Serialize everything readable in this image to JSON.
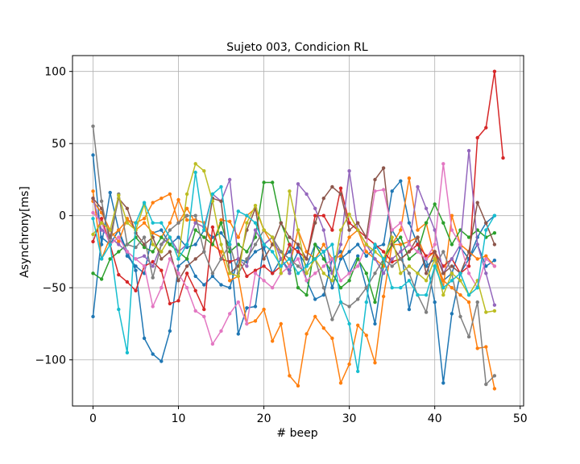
{
  "chart_data": {
    "type": "line",
    "title": "Sujeto 003, Condicion RL",
    "xlabel": "# beep",
    "ylabel": "Asynchrony[ms]",
    "xlim": [
      -2.4,
      50.4
    ],
    "ylim": [
      -132,
      111
    ],
    "xticks": [
      0,
      10,
      20,
      30,
      40,
      50
    ],
    "yticks": [
      -100,
      -50,
      0,
      50,
      100
    ],
    "grid": true,
    "legend": "none",
    "markers": "dot",
    "colors": [
      "#1f77b4",
      "#ff7f0e",
      "#2ca02c",
      "#d62728",
      "#9467bd",
      "#8c564b",
      "#e377c2",
      "#7f7f7f",
      "#bcbd22",
      "#17becf"
    ],
    "series": [
      {
        "color": "#1f77b4",
        "x": [
          0,
          1,
          2,
          3,
          4,
          5,
          6,
          7,
          8,
          9,
          10,
          11,
          12,
          13,
          14,
          15,
          16,
          17,
          18,
          19,
          20,
          21,
          22,
          23,
          24,
          25,
          26,
          27,
          28,
          29,
          30,
          31,
          32,
          33,
          34,
          35,
          36,
          37,
          38,
          39,
          40,
          41,
          42,
          43,
          44,
          45,
          46,
          47
        ],
        "y": [
          42,
          -20,
          16,
          -10,
          -25,
          -38,
          -85,
          -96,
          -101,
          -80,
          -35,
          -30,
          -42,
          -48,
          -42,
          -48,
          -50,
          -30,
          -32,
          -25,
          -22,
          -40,
          -30,
          -25,
          -22,
          -45,
          -58,
          -55,
          -30,
          -25,
          -40,
          -28,
          -50,
          -75,
          -35,
          -10,
          -20,
          -65,
          -40,
          -30,
          -60,
          -116,
          -68,
          -40,
          -30,
          -20,
          -35,
          -31
        ]
      },
      {
        "color": "#1f77b4",
        "x": [
          0,
          1,
          2,
          3,
          4,
          5,
          6,
          7,
          8,
          9,
          10,
          11,
          12,
          13,
          14,
          15,
          16,
          17,
          18,
          19,
          20,
          21,
          22,
          23,
          24,
          25,
          26,
          27,
          28,
          29,
          30,
          31,
          32,
          33,
          34,
          35,
          36,
          37,
          38,
          39,
          40,
          41,
          42,
          43,
          44,
          45,
          46,
          47
        ],
        "y": [
          -70,
          -15,
          -20,
          -10,
          -28,
          -35,
          -40,
          -12,
          -10,
          -20,
          -15,
          -22,
          -20,
          -10,
          -15,
          -12,
          -20,
          -82,
          -64,
          -63,
          -20,
          -15,
          -30,
          -38,
          -25,
          -35,
          -20,
          -25,
          -50,
          -30,
          -25,
          -20,
          -28,
          -22,
          -20,
          17,
          24,
          -5,
          -20,
          -35,
          -30,
          -45,
          -40,
          -22,
          -30,
          -15,
          -5,
          0
        ]
      },
      {
        "color": "#ff7f0e",
        "x": [
          0,
          1,
          2,
          3,
          4,
          5,
          6,
          7,
          8,
          9,
          10,
          11,
          12,
          13,
          14,
          15,
          16,
          17,
          18,
          19,
          20,
          21,
          22,
          23,
          24,
          25,
          26,
          27,
          28,
          29,
          30,
          31,
          32,
          33,
          34,
          35,
          36,
          37,
          38,
          39,
          40,
          41,
          42,
          43,
          44,
          45,
          46,
          47
        ],
        "y": [
          17,
          -30,
          -15,
          -10,
          -3,
          -5,
          -2,
          9,
          12,
          15,
          -5,
          5,
          -5,
          -8,
          -20,
          -25,
          -45,
          -42,
          -75,
          -73,
          -65,
          -87,
          -75,
          -111,
          -118,
          -82,
          -70,
          -78,
          -85,
          -116,
          -103,
          -76,
          -83,
          -102,
          -56,
          -20,
          -10,
          26,
          -10,
          -5,
          -30,
          -45,
          -50,
          -55,
          -60,
          -92,
          -91,
          -120
        ]
      },
      {
        "color": "#ff7f0e",
        "x": [
          0,
          1,
          2,
          3,
          4,
          5,
          6,
          7,
          8,
          9,
          10,
          11,
          12,
          13,
          14,
          15,
          16,
          17,
          18,
          19,
          20,
          21,
          22,
          23,
          24,
          25,
          26,
          27,
          28,
          29,
          30,
          31,
          32,
          33,
          34,
          35,
          36,
          37,
          38,
          39,
          40,
          41,
          42,
          43,
          44,
          45,
          46,
          47
        ],
        "y": [
          10,
          2,
          -10,
          -18,
          -2,
          -10,
          -5,
          -12,
          -15,
          -5,
          11,
          -3,
          -3,
          -5,
          -20,
          -3,
          -4,
          -15,
          0,
          5,
          -10,
          -20,
          -25,
          -35,
          -10,
          -25,
          -30,
          -20,
          -30,
          -28,
          -15,
          -10,
          -25,
          -30,
          -35,
          -20,
          -20,
          -18,
          -15,
          -30,
          -25,
          -50,
          0,
          -20,
          -25,
          -30,
          -28,
          -35
        ]
      },
      {
        "color": "#2ca02c",
        "x": [
          0,
          1,
          2,
          3,
          4,
          5,
          6,
          7,
          8,
          9,
          10,
          11,
          12,
          13,
          14,
          15,
          16,
          17,
          18,
          19,
          20,
          21,
          22,
          23,
          24,
          25,
          26,
          27,
          28,
          29,
          30,
          31,
          32,
          33,
          34,
          35,
          36,
          37,
          38,
          39,
          40,
          41,
          42,
          43,
          44,
          45,
          46,
          47
        ],
        "y": [
          -40,
          -44,
          -30,
          -25,
          -20,
          -15,
          -22,
          -25,
          -15,
          -20,
          -25,
          -30,
          -10,
          -15,
          -20,
          -5,
          -25,
          -20,
          -25,
          -15,
          23,
          23,
          -5,
          -20,
          -50,
          -55,
          -20,
          -30,
          -40,
          -50,
          -45,
          -30,
          -40,
          -60,
          -30,
          -20,
          -15,
          -30,
          -25,
          -5,
          8,
          -5,
          -20,
          -10,
          -15,
          -10,
          -15,
          -12
        ]
      },
      {
        "color": "#d62728",
        "x": [
          0,
          1,
          2,
          3,
          4,
          5,
          6,
          7,
          8,
          9,
          10,
          11,
          12,
          13,
          14,
          15,
          16,
          17,
          18,
          19,
          20,
          21,
          22,
          23,
          24,
          25,
          26,
          27,
          28,
          29,
          30,
          31,
          32,
          33,
          34,
          35,
          36,
          37,
          38,
          39,
          40,
          41,
          42,
          43,
          44,
          45,
          46,
          47,
          48
        ],
        "y": [
          -18,
          -2,
          -20,
          -41,
          -46,
          -52,
          -35,
          -32,
          -38,
          -61,
          -59,
          -40,
          -52,
          -65,
          -8,
          -30,
          -32,
          -30,
          -42,
          -38,
          -35,
          -40,
          -35,
          -20,
          -25,
          -30,
          0,
          0,
          -10,
          19,
          -5,
          -10,
          -15,
          -20,
          -25,
          -32,
          -30,
          -25,
          -20,
          -28,
          -25,
          -35,
          -30,
          -40,
          -35,
          54,
          61,
          100,
          40
        ]
      },
      {
        "color": "#9467bd",
        "x": [
          0,
          1,
          2,
          3,
          4,
          5,
          6,
          7,
          8,
          9,
          10,
          11,
          12,
          13,
          14,
          15,
          16,
          17,
          18,
          19,
          20,
          21,
          22,
          23,
          24,
          25,
          26,
          27,
          28,
          29,
          30,
          31,
          32,
          33,
          34,
          35,
          36,
          37,
          38,
          39,
          40,
          41,
          42,
          43,
          44,
          45,
          46,
          47
        ],
        "y": [
          12,
          -10,
          -15,
          -20,
          -25,
          -30,
          -28,
          -35,
          -20,
          -15,
          -25,
          -20,
          -5,
          -8,
          15,
          10,
          25,
          -30,
          -35,
          -10,
          -20,
          -15,
          -30,
          -40,
          22,
          15,
          5,
          -10,
          -40,
          -20,
          31,
          -10,
          -20,
          -30,
          -40,
          -30,
          -25,
          -20,
          20,
          5,
          -10,
          -40,
          -30,
          -20,
          45,
          -20,
          -40,
          -62
        ]
      },
      {
        "color": "#8c564b",
        "x": [
          0,
          1,
          2,
          3,
          4,
          5,
          6,
          7,
          8,
          9,
          10,
          11,
          12,
          13,
          14,
          15,
          16,
          17,
          18,
          19,
          20,
          21,
          22,
          23,
          24,
          25,
          26,
          27,
          28,
          29,
          30,
          31,
          32,
          33,
          34,
          35,
          36,
          37,
          38,
          39,
          40,
          41,
          42,
          43,
          44,
          45,
          46,
          47
        ],
        "y": [
          12,
          5,
          -15,
          12,
          5,
          -12,
          -20,
          -15,
          -30,
          -25,
          -45,
          -35,
          -30,
          -25,
          12,
          10,
          -40,
          -35,
          -10,
          5,
          -30,
          -20,
          -5,
          -15,
          -20,
          -30,
          -5,
          12,
          20,
          15,
          -10,
          -5,
          -15,
          25,
          33,
          -20,
          -30,
          -25,
          -15,
          -40,
          -25,
          -40,
          -35,
          -40,
          -25,
          9,
          -5,
          -20
        ]
      },
      {
        "color": "#e377c2",
        "x": [
          0,
          1,
          2,
          3,
          4,
          5,
          6,
          7,
          8,
          9,
          10,
          11,
          12,
          13,
          14,
          15,
          16,
          17,
          18,
          19,
          20,
          21,
          22,
          23,
          24,
          25,
          26,
          27,
          28,
          29,
          30,
          31,
          32,
          33,
          34,
          35,
          36,
          37,
          38,
          39,
          40,
          41,
          42,
          43,
          44,
          45,
          46,
          47
        ],
        "y": [
          2,
          -5,
          -20,
          -15,
          -25,
          -30,
          -35,
          -63,
          -50,
          -30,
          -40,
          -50,
          -66,
          -70,
          -89,
          -80,
          -68,
          -60,
          -75,
          -40,
          -45,
          -50,
          -40,
          -35,
          -30,
          -45,
          -40,
          -35,
          -30,
          -45,
          -40,
          -35,
          -20,
          17,
          18,
          -10,
          -5,
          -20,
          -25,
          -30,
          -20,
          36,
          -10,
          -20,
          -40,
          -50,
          -30,
          -35
        ]
      },
      {
        "color": "#7f7f7f",
        "x": [
          0,
          1,
          2,
          3,
          4,
          5,
          6,
          7,
          8,
          9,
          10,
          11,
          12,
          13,
          14,
          15,
          16,
          17,
          18,
          19,
          20,
          21,
          22,
          23,
          24,
          25,
          26,
          27,
          28,
          29,
          30,
          31,
          32,
          33,
          34,
          35,
          36,
          37,
          38,
          39,
          40,
          41,
          42,
          43,
          44,
          45,
          46,
          47
        ],
        "y": [
          62,
          10,
          -20,
          15,
          -20,
          -22,
          -15,
          -43,
          -20,
          -10,
          -5,
          0,
          0,
          -25,
          -40,
          -30,
          -20,
          -40,
          -30,
          -20,
          -10,
          -15,
          -25,
          -30,
          -35,
          -40,
          -30,
          -50,
          -72,
          -60,
          -63,
          -58,
          -50,
          -40,
          -30,
          -35,
          -30,
          -40,
          -55,
          -67,
          -35,
          -25,
          -40,
          -70,
          -84,
          -60,
          -117,
          -111
        ]
      },
      {
        "color": "#bcbd22",
        "x": [
          0,
          1,
          2,
          3,
          4,
          5,
          6,
          7,
          8,
          9,
          10,
          11,
          12,
          13,
          14,
          15,
          16,
          17,
          18,
          19,
          20,
          21,
          22,
          23,
          24,
          25,
          26,
          27,
          28,
          29,
          30,
          31,
          32,
          33,
          34,
          35,
          36,
          37,
          38,
          39,
          40,
          41,
          42,
          43,
          44,
          45,
          46,
          47
        ],
        "y": [
          -13,
          -5,
          -10,
          14,
          -5,
          -10,
          8,
          -20,
          -25,
          -15,
          -30,
          15,
          36,
          31,
          10,
          -20,
          -40,
          -42,
          -5,
          7,
          -10,
          -15,
          -40,
          17,
          -10,
          -40,
          -30,
          -40,
          -45,
          -10,
          1,
          -10,
          -20,
          -25,
          -30,
          -15,
          -40,
          -35,
          -40,
          -45,
          -30,
          -55,
          -40,
          -45,
          -55,
          -45,
          -67,
          -66
        ]
      },
      {
        "color": "#17becf",
        "x": [
          0,
          1,
          2,
          3,
          4,
          5,
          6,
          7,
          8,
          9,
          10,
          11,
          12,
          13,
          14,
          15,
          16,
          17,
          18,
          19,
          20,
          21,
          22,
          23,
          24,
          25,
          26,
          27,
          28,
          29,
          30,
          31,
          32,
          33,
          34,
          35,
          36,
          37,
          38,
          39,
          40,
          41,
          42,
          43,
          44,
          45,
          46,
          47
        ],
        "y": [
          -2,
          -30,
          -20,
          -65,
          -95,
          -5,
          9,
          -5,
          -5,
          -15,
          -30,
          -20,
          30,
          -10,
          15,
          20,
          -20,
          3,
          0,
          -5,
          -20,
          -25,
          -35,
          -30,
          -40,
          -35,
          -30,
          -25,
          -20,
          -60,
          -75,
          -108,
          -60,
          -20,
          -30,
          -50,
          -50,
          -45,
          -55,
          -55,
          -35,
          -50,
          -45,
          -40,
          -55,
          -50,
          -10,
          0
        ]
      }
    ]
  }
}
